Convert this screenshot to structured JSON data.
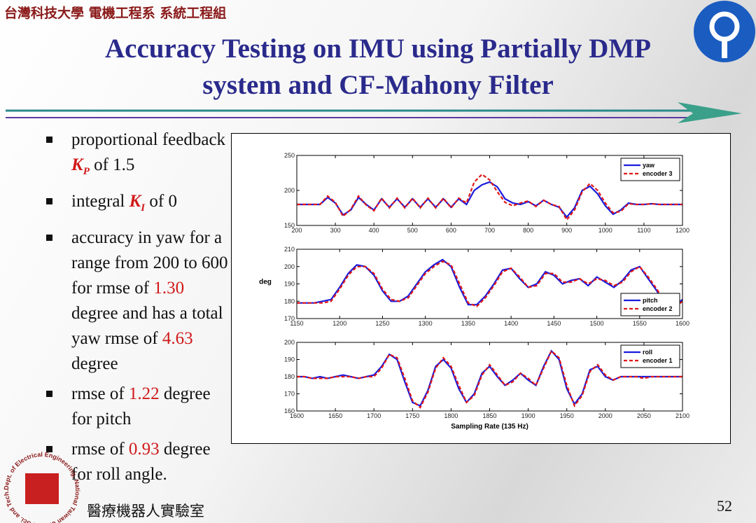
{
  "header": {
    "org": "台灣科技大學 電機工程系 系統工程組",
    "title_line1": "Accuracy Testing on IMU using Partially DMP",
    "title_line2": "system and CF-Mahony Filter"
  },
  "bullets": [
    [
      "proportional feedback ",
      "K",
      "P",
      " of 1.5"
    ],
    [
      "integral ",
      "K",
      "I",
      " of 0"
    ],
    [
      "accuracy in yaw for a range from 200 to 600 for rmse of ",
      "1.30",
      " degree and has a total yaw rmse of ",
      "4.63",
      " degree"
    ],
    [
      "rmse of ",
      "1.22",
      " degree for pitch"
    ],
    [
      "rmse of ",
      "0.93",
      " degree for roll angle."
    ]
  ],
  "footer": {
    "lab": "醫療機器人實驗室",
    "page": "52",
    "logo_ring": "Dept. of Electrical Engineering, National Taiwan Univ. of Sci. and Tech."
  },
  "chart_data": [
    {
      "type": "line",
      "xlim": [
        200,
        1200
      ],
      "ylim": [
        150,
        250
      ],
      "xticks": [
        200,
        300,
        400,
        500,
        600,
        700,
        800,
        900,
        1000,
        1100,
        1200
      ],
      "yticks": [
        150,
        200,
        250
      ],
      "legend": "upper right",
      "x": [
        200,
        220,
        240,
        260,
        280,
        300,
        320,
        340,
        360,
        380,
        400,
        420,
        440,
        460,
        480,
        500,
        520,
        540,
        560,
        580,
        600,
        620,
        640,
        660,
        680,
        700,
        720,
        740,
        760,
        780,
        800,
        820,
        840,
        860,
        880,
        900,
        920,
        940,
        960,
        980,
        1000,
        1020,
        1040,
        1060,
        1080,
        1100,
        1120,
        1140,
        1160,
        1180,
        1200
      ],
      "series": [
        {
          "name": "yaw",
          "color": "#1a1adc",
          "linestyle": "solid",
          "values": [
            180,
            180,
            180,
            180,
            190,
            182,
            165,
            172,
            190,
            180,
            172,
            188,
            176,
            188,
            176,
            188,
            176,
            188,
            176,
            188,
            176,
            188,
            180,
            200,
            208,
            212,
            205,
            188,
            182,
            180,
            184,
            178,
            186,
            180,
            176,
            162,
            175,
            200,
            206,
            195,
            178,
            166,
            172,
            182,
            180,
            180,
            181,
            180,
            180,
            180,
            180
          ]
        },
        {
          "name": "encoder 3",
          "color": "#e01818",
          "linestyle": "dashed",
          "values": [
            180,
            180,
            180,
            180,
            192,
            183,
            163,
            173,
            192,
            179,
            171,
            189,
            175,
            189,
            175,
            189,
            175,
            189,
            175,
            189,
            175,
            189,
            182,
            212,
            223,
            215,
            198,
            183,
            178,
            182,
            185,
            177,
            186,
            180,
            177,
            158,
            172,
            198,
            210,
            200,
            182,
            168,
            170,
            181,
            180,
            180,
            181,
            180,
            180,
            180,
            180
          ]
        }
      ]
    },
    {
      "type": "line",
      "xlim": [
        1150,
        1600
      ],
      "ylim": [
        170,
        210
      ],
      "ylabel": "deg",
      "xticks": [
        1150,
        1200,
        1250,
        1300,
        1350,
        1400,
        1450,
        1500,
        1550,
        1600
      ],
      "yticks": [
        170,
        180,
        190,
        200,
        210
      ],
      "legend": "lower right",
      "x": [
        1150,
        1160,
        1170,
        1180,
        1190,
        1200,
        1210,
        1220,
        1230,
        1240,
        1250,
        1260,
        1270,
        1280,
        1290,
        1300,
        1310,
        1320,
        1330,
        1340,
        1350,
        1360,
        1370,
        1380,
        1390,
        1400,
        1410,
        1420,
        1430,
        1440,
        1450,
        1460,
        1470,
        1480,
        1490,
        1500,
        1510,
        1520,
        1530,
        1540,
        1550,
        1560,
        1570,
        1580,
        1590,
        1600
      ],
      "series": [
        {
          "name": "pitch",
          "color": "#1a1adc",
          "linestyle": "solid",
          "values": [
            179,
            179,
            179,
            180,
            181,
            188,
            196,
            201,
            200,
            195,
            186,
            180,
            180,
            183,
            190,
            197,
            201,
            204,
            200,
            188,
            178,
            178,
            183,
            190,
            198,
            199,
            193,
            188,
            190,
            197,
            195,
            190,
            192,
            193,
            189,
            194,
            191,
            188,
            192,
            198,
            200,
            193,
            186,
            178,
            177,
            181
          ]
        },
        {
          "name": "encoder 2",
          "color": "#e01818",
          "linestyle": "dashed",
          "values": [
            179,
            179,
            179,
            179,
            180,
            187,
            195,
            200,
            200,
            196,
            187,
            181,
            180,
            182,
            189,
            196,
            200,
            203,
            201,
            190,
            179,
            177,
            182,
            189,
            197,
            199,
            194,
            188,
            189,
            196,
            196,
            191,
            191,
            193,
            190,
            193,
            192,
            189,
            191,
            197,
            200,
            194,
            187,
            179,
            176,
            180
          ]
        }
      ]
    },
    {
      "type": "line",
      "xlim": [
        1600,
        2100
      ],
      "ylim": [
        160,
        200
      ],
      "xlabel": "Sampling Rate (135 Hz)",
      "xticks": [
        1600,
        1650,
        1700,
        1750,
        1800,
        1850,
        1900,
        1950,
        2000,
        2050,
        2100
      ],
      "yticks": [
        160,
        170,
        180,
        190,
        200
      ],
      "legend": "upper right",
      "x": [
        1600,
        1610,
        1620,
        1630,
        1640,
        1650,
        1660,
        1670,
        1680,
        1690,
        1700,
        1710,
        1720,
        1730,
        1740,
        1750,
        1760,
        1770,
        1780,
        1790,
        1800,
        1810,
        1820,
        1830,
        1840,
        1850,
        1860,
        1870,
        1880,
        1890,
        1900,
        1910,
        1920,
        1930,
        1940,
        1950,
        1960,
        1970,
        1980,
        1990,
        2000,
        2010,
        2020,
        2030,
        2040,
        2050,
        2060,
        2070,
        2080,
        2090,
        2100
      ],
      "series": [
        {
          "name": "roll",
          "color": "#1a1adc",
          "linestyle": "solid",
          "values": [
            180,
            180,
            179,
            180,
            179,
            180,
            181,
            180,
            179,
            180,
            181,
            186,
            193,
            190,
            177,
            165,
            163,
            172,
            186,
            190,
            185,
            173,
            165,
            170,
            182,
            186,
            180,
            175,
            178,
            182,
            178,
            175,
            186,
            195,
            190,
            173,
            164,
            170,
            184,
            186,
            180,
            178,
            180,
            180,
            180,
            180,
            180,
            180,
            180,
            180,
            180
          ]
        },
        {
          "name": "encoder 1",
          "color": "#e01818",
          "linestyle": "dashed",
          "values": [
            180,
            180,
            179,
            179,
            179,
            180,
            180,
            180,
            179,
            180,
            180,
            185,
            193,
            191,
            179,
            166,
            162,
            171,
            185,
            191,
            186,
            175,
            165,
            169,
            181,
            187,
            181,
            175,
            177,
            182,
            179,
            175,
            185,
            195,
            191,
            175,
            163,
            169,
            183,
            187,
            181,
            178,
            180,
            180,
            180,
            179,
            180,
            180,
            180,
            180,
            180
          ]
        }
      ]
    }
  ]
}
